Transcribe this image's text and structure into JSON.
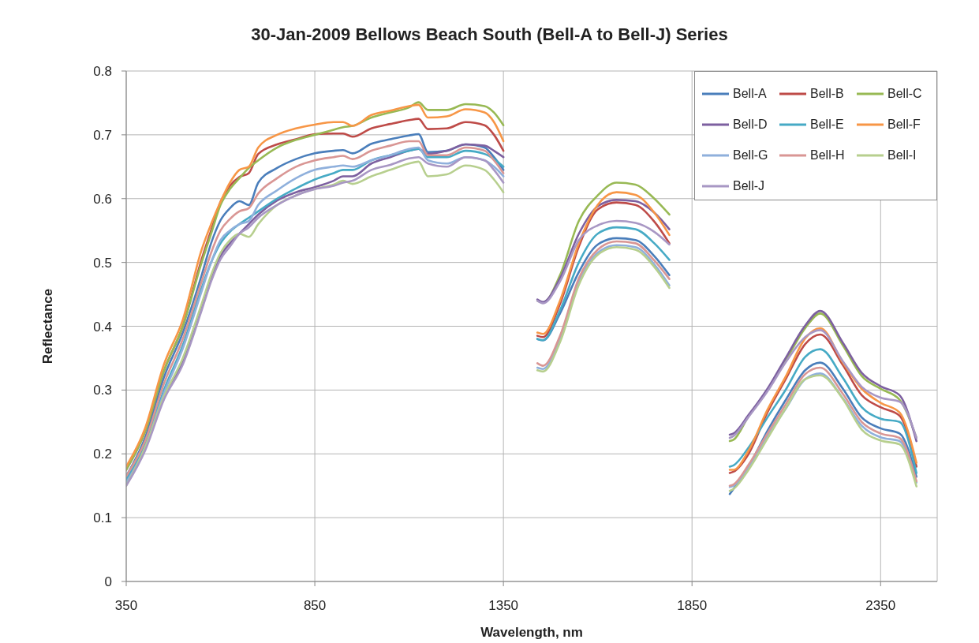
{
  "chart_data": {
    "type": "line",
    "title": "30-Jan-2009 Bellows Beach South (Bell-A to Bell-J) Series",
    "xlabel": "Wavelength, nm",
    "ylabel": "Reflectance",
    "x": [
      350,
      400,
      450,
      500,
      550,
      575,
      600,
      625,
      650,
      675,
      700,
      750,
      800,
      850,
      900,
      925,
      950,
      1000,
      1050,
      1100,
      1125,
      1150,
      1200,
      1250,
      1300,
      1325,
      1350,
      1400,
      1440,
      1455,
      1500,
      1550,
      1600,
      1650,
      1700,
      1750,
      1790,
      1870,
      1950,
      1960,
      2000,
      2050,
      2100,
      2150,
      2190,
      2250,
      2300,
      2350,
      2400,
      2445
    ],
    "series": [
      {
        "name": "Bell-A",
        "color": "#4a7ebb",
        "values": [
          0.165,
          0.225,
          0.32,
          0.39,
          0.48,
          0.53,
          0.566,
          0.585,
          0.596,
          0.59,
          0.625,
          0.648,
          0.662,
          0.671,
          0.675,
          0.676,
          0.671,
          0.686,
          0.693,
          0.699,
          0.701,
          0.673,
          0.675,
          0.685,
          0.68,
          0.665,
          0.645,
          null,
          0.38,
          0.378,
          0.42,
          0.485,
          0.528,
          0.538,
          0.535,
          0.51,
          0.48,
          null,
          0.137,
          0.145,
          0.18,
          0.236,
          0.286,
          0.331,
          0.343,
          0.302,
          0.257,
          0.24,
          0.232,
          0.164
        ]
      },
      {
        "name": "Bell-B",
        "color": "#be4b48",
        "values": [
          0.175,
          0.235,
          0.33,
          0.4,
          0.505,
          0.55,
          0.595,
          0.62,
          0.634,
          0.64,
          0.67,
          0.685,
          0.693,
          0.701,
          0.702,
          0.702,
          0.697,
          0.71,
          0.717,
          0.723,
          0.725,
          0.709,
          0.71,
          0.72,
          0.715,
          0.7,
          0.675,
          null,
          0.385,
          0.383,
          0.435,
          0.525,
          0.583,
          0.594,
          0.59,
          0.564,
          0.53,
          null,
          0.17,
          0.172,
          0.2,
          0.265,
          0.319,
          0.372,
          0.387,
          0.339,
          0.292,
          0.273,
          0.26,
          0.18
        ]
      },
      {
        "name": "Bell-C",
        "color": "#98b954",
        "values": [
          0.175,
          0.235,
          0.33,
          0.4,
          0.5,
          0.545,
          0.59,
          0.615,
          0.632,
          0.648,
          0.66,
          0.68,
          0.692,
          0.7,
          0.708,
          0.712,
          0.714,
          0.727,
          0.735,
          0.743,
          0.751,
          0.739,
          0.739,
          0.748,
          0.745,
          0.735,
          0.715,
          null,
          0.44,
          0.437,
          0.48,
          0.565,
          0.605,
          0.625,
          0.622,
          0.6,
          0.575,
          null,
          0.22,
          0.222,
          0.259,
          0.3,
          0.348,
          0.397,
          0.42,
          0.37,
          0.322,
          0.302,
          0.285,
          0.225
        ]
      },
      {
        "name": "Bell-D",
        "color": "#7d60a0",
        "values": [
          0.155,
          0.21,
          0.29,
          0.345,
          0.43,
          0.475,
          0.51,
          0.53,
          0.545,
          0.56,
          0.575,
          0.597,
          0.61,
          0.618,
          0.628,
          0.635,
          0.635,
          0.655,
          0.665,
          0.675,
          0.678,
          0.67,
          0.675,
          0.685,
          0.683,
          0.675,
          0.665,
          null,
          0.442,
          0.438,
          0.475,
          0.545,
          0.588,
          0.598,
          0.596,
          0.578,
          0.552,
          null,
          0.23,
          0.232,
          0.261,
          0.302,
          0.352,
          0.401,
          0.424,
          0.374,
          0.327,
          0.306,
          0.292,
          0.22
        ]
      },
      {
        "name": "Bell-E",
        "color": "#46aac5",
        "values": [
          0.16,
          0.215,
          0.3,
          0.37,
          0.46,
          0.5,
          0.53,
          0.548,
          0.56,
          0.57,
          0.58,
          0.6,
          0.616,
          0.63,
          0.64,
          0.645,
          0.645,
          0.66,
          0.668,
          0.675,
          0.678,
          0.665,
          0.665,
          0.675,
          0.67,
          0.662,
          0.65,
          null,
          0.38,
          0.378,
          0.425,
          0.5,
          0.545,
          0.555,
          0.552,
          0.53,
          0.504,
          null,
          0.18,
          0.182,
          0.21,
          0.257,
          0.302,
          0.352,
          0.364,
          0.319,
          0.273,
          0.255,
          0.25,
          0.17
        ]
      },
      {
        "name": "Bell-F",
        "color": "#f79646",
        "values": [
          0.18,
          0.24,
          0.34,
          0.41,
          0.52,
          0.56,
          0.595,
          0.625,
          0.645,
          0.65,
          0.68,
          0.7,
          0.71,
          0.716,
          0.72,
          0.72,
          0.714,
          0.731,
          0.738,
          0.745,
          0.747,
          0.727,
          0.729,
          0.74,
          0.735,
          0.72,
          0.69,
          null,
          0.39,
          0.388,
          0.44,
          0.53,
          0.59,
          0.61,
          0.606,
          0.578,
          0.543,
          null,
          0.175,
          0.175,
          0.205,
          0.269,
          0.323,
          0.381,
          0.397,
          0.343,
          0.302,
          0.28,
          0.265,
          0.186
        ]
      },
      {
        "name": "Bell-G",
        "color": "#8fb0dc",
        "values": [
          0.155,
          0.21,
          0.295,
          0.365,
          0.455,
          0.5,
          0.535,
          0.55,
          0.56,
          0.565,
          0.59,
          0.613,
          0.632,
          0.645,
          0.65,
          0.652,
          0.65,
          0.66,
          0.668,
          0.678,
          0.68,
          0.66,
          0.655,
          0.665,
          0.66,
          0.65,
          0.635,
          null,
          0.335,
          0.333,
          0.38,
          0.47,
          0.515,
          0.527,
          0.524,
          0.497,
          0.464,
          null,
          0.148,
          0.15,
          0.18,
          0.228,
          0.272,
          0.317,
          0.326,
          0.287,
          0.244,
          0.226,
          0.22,
          0.155
        ]
      },
      {
        "name": "Bell-H",
        "color": "#d99694",
        "values": [
          0.165,
          0.22,
          0.31,
          0.38,
          0.47,
          0.515,
          0.55,
          0.568,
          0.58,
          0.585,
          0.608,
          0.632,
          0.65,
          0.66,
          0.665,
          0.667,
          0.662,
          0.675,
          0.683,
          0.69,
          0.69,
          0.668,
          0.668,
          0.68,
          0.675,
          0.66,
          0.64,
          null,
          0.342,
          0.338,
          0.385,
          0.475,
          0.52,
          0.533,
          0.53,
          0.503,
          0.474,
          null,
          0.15,
          0.152,
          0.183,
          0.232,
          0.279,
          0.325,
          0.335,
          0.294,
          0.25,
          0.232,
          0.225,
          0.157
        ]
      },
      {
        "name": "Bell-I",
        "color": "#b7cf8e",
        "values": [
          0.15,
          0.21,
          0.29,
          0.35,
          0.435,
          0.48,
          0.515,
          0.535,
          0.545,
          0.54,
          0.56,
          0.59,
          0.605,
          0.615,
          0.622,
          0.628,
          0.623,
          0.635,
          0.645,
          0.655,
          0.658,
          0.635,
          0.638,
          0.652,
          0.645,
          0.63,
          0.61,
          null,
          0.331,
          0.329,
          0.375,
          0.465,
          0.512,
          0.524,
          0.52,
          0.493,
          0.46,
          null,
          0.142,
          0.145,
          0.175,
          0.224,
          0.273,
          0.317,
          0.323,
          0.286,
          0.238,
          0.221,
          0.215,
          0.149
        ]
      },
      {
        "name": "Bell-J",
        "color": "#a897c4",
        "values": [
          0.15,
          0.205,
          0.285,
          0.34,
          0.425,
          0.47,
          0.505,
          0.525,
          0.545,
          0.555,
          0.57,
          0.59,
          0.605,
          0.615,
          0.62,
          0.625,
          0.628,
          0.645,
          0.653,
          0.663,
          0.665,
          0.655,
          0.65,
          0.665,
          0.66,
          0.645,
          0.625,
          null,
          0.44,
          0.436,
          0.47,
          0.535,
          0.558,
          0.565,
          0.562,
          0.548,
          0.528,
          null,
          0.225,
          0.228,
          0.258,
          0.298,
          0.345,
          0.383,
          0.394,
          0.345,
          0.305,
          0.288,
          0.282,
          0.225
        ]
      }
    ],
    "xlim": [
      350,
      2500
    ],
    "xticks": [
      350,
      850,
      1350,
      1850,
      2350
    ],
    "ylim": [
      0,
      0.8
    ],
    "yticks": [
      0,
      0.1,
      0.2,
      0.3,
      0.4,
      0.5,
      0.6,
      0.7,
      0.8
    ],
    "grid": true,
    "legend": "top right",
    "marker": "none",
    "line_style": "solid"
  }
}
